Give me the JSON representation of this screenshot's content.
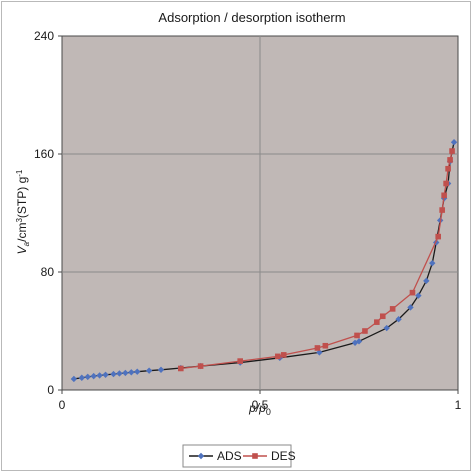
{
  "chart_data": {
    "type": "line",
    "title": "Adsorption / desorption isotherm",
    "xlabel": "p/p₀",
    "ylabel": "V",
    "ylabel_sub": "a",
    "ylabel_rest": "/cm³(STP) g⁻¹",
    "xlim": [
      0,
      1
    ],
    "ylim": [
      0,
      240
    ],
    "xticks": [
      {
        "value": 0,
        "label": "0"
      },
      {
        "value": 0.5,
        "label": "0.5"
      },
      {
        "value": 1,
        "label": "1"
      }
    ],
    "yticks": [
      {
        "value": 0,
        "label": "0"
      },
      {
        "value": 80,
        "label": "80"
      },
      {
        "value": 160,
        "label": "160"
      },
      {
        "value": 240,
        "label": "240"
      }
    ],
    "grid": true,
    "legend_position": "bottom-center",
    "plot_background": "#c0b8b6",
    "series": [
      {
        "name": "ADS",
        "color": "#4f72be",
        "line_color": "#1a1a1a",
        "marker": "diamond",
        "points": [
          [
            0.03,
            7.5
          ],
          [
            0.05,
            8.3
          ],
          [
            0.065,
            8.9
          ],
          [
            0.08,
            9.4
          ],
          [
            0.095,
            9.9
          ],
          [
            0.11,
            10.3
          ],
          [
            0.13,
            10.8
          ],
          [
            0.145,
            11.2
          ],
          [
            0.16,
            11.6
          ],
          [
            0.175,
            12.0
          ],
          [
            0.19,
            12.4
          ],
          [
            0.22,
            13.1
          ],
          [
            0.25,
            13.7
          ],
          [
            0.3,
            14.9
          ],
          [
            0.35,
            16.2
          ],
          [
            0.45,
            18.6
          ],
          [
            0.55,
            21.8
          ],
          [
            0.65,
            25.5
          ],
          [
            0.74,
            32.0
          ],
          [
            0.75,
            33.0
          ],
          [
            0.82,
            42.0
          ],
          [
            0.85,
            48.0
          ],
          [
            0.88,
            56.0
          ],
          [
            0.9,
            64.0
          ],
          [
            0.92,
            74.0
          ],
          [
            0.935,
            86.0
          ],
          [
            0.945,
            100.0
          ],
          [
            0.955,
            115.0
          ],
          [
            0.965,
            130.0
          ],
          [
            0.975,
            140.0
          ],
          [
            0.98,
            155.0
          ],
          [
            0.99,
            168.0
          ]
        ]
      },
      {
        "name": "DES",
        "color": "#c0504d",
        "line_color": "#c0504d",
        "marker": "square",
        "points": [
          [
            0.985,
            162.0
          ],
          [
            0.98,
            156.0
          ],
          [
            0.975,
            150.0
          ],
          [
            0.97,
            140.0
          ],
          [
            0.965,
            132.0
          ],
          [
            0.96,
            122.0
          ],
          [
            0.95,
            104.0
          ],
          [
            0.885,
            66.0
          ],
          [
            0.835,
            55.0
          ],
          [
            0.81,
            50.0
          ],
          [
            0.795,
            46.0
          ],
          [
            0.765,
            40.0
          ],
          [
            0.745,
            37.0
          ],
          [
            0.665,
            30.0
          ],
          [
            0.645,
            28.5
          ],
          [
            0.56,
            23.8
          ],
          [
            0.545,
            22.8
          ],
          [
            0.45,
            19.6
          ],
          [
            0.35,
            16.2
          ],
          [
            0.3,
            14.6
          ]
        ]
      }
    ]
  }
}
